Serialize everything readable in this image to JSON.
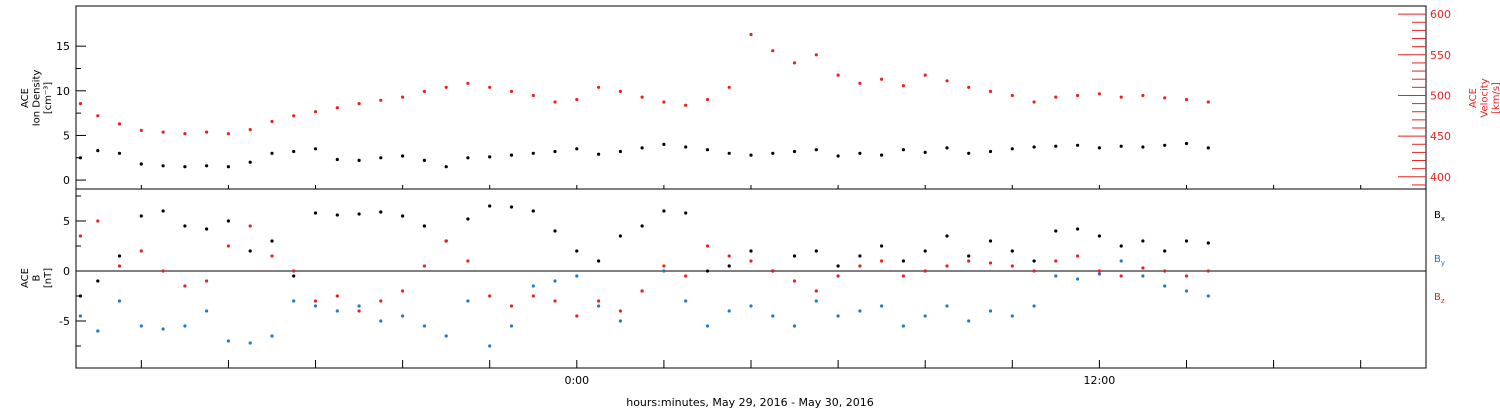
{
  "chart_data": [
    {
      "type": "scatter",
      "title": "",
      "xlabel": "",
      "ylabel_left": [
        "ACE",
        "Ion Density",
        "[cm⁻³]"
      ],
      "ylabel_right": [
        "ACE",
        "Velocity",
        "[km/s]"
      ],
      "xlim_hours": [
        -11.5,
        19.5
      ],
      "ylim_left": [
        -1,
        19.5
      ],
      "ylim_right": [
        385,
        610
      ],
      "yticks_left": [
        0,
        5,
        10,
        15
      ],
      "yticks_right": [
        400,
        450,
        500,
        550,
        600
      ],
      "colors": {
        "density": "#000000",
        "velocity": "#e8231f"
      },
      "series": [
        {
          "name": "Ion Density",
          "axis": "left",
          "color": "#000000",
          "x": [
            -11.4,
            -11.0,
            -10.5,
            -10.0,
            -9.5,
            -9.0,
            -8.5,
            -8.0,
            -7.5,
            -7.0,
            -6.5,
            -6.0,
            -5.5,
            -5.0,
            -4.5,
            -4.0,
            -3.5,
            -3.0,
            -2.5,
            -2.0,
            -1.5,
            -1.0,
            -0.5,
            0.0,
            0.5,
            1.0,
            1.5,
            2.0,
            2.5,
            3.0,
            3.5,
            4.0,
            4.5,
            5.0,
            5.5,
            6.0,
            6.5,
            7.0,
            7.5,
            8.0,
            8.5,
            9.0,
            9.5,
            10.0,
            10.5,
            11.0,
            11.5,
            12.0,
            12.5,
            13.0,
            13.5,
            14.0,
            14.5
          ],
          "y": [
            2.5,
            3.3,
            3.0,
            1.8,
            1.6,
            1.5,
            1.6,
            1.5,
            2.0,
            3.0,
            3.2,
            3.5,
            2.3,
            2.2,
            2.5,
            2.7,
            2.2,
            1.5,
            2.5,
            2.6,
            2.8,
            3.0,
            3.2,
            3.5,
            2.9,
            3.2,
            3.6,
            4.0,
            3.7,
            3.4,
            3.0,
            2.8,
            3.0,
            3.2,
            3.4,
            2.7,
            3.0,
            2.8,
            3.4,
            3.1,
            3.6,
            3.0,
            3.2,
            3.5,
            3.7,
            3.8,
            3.9,
            3.6,
            3.8,
            3.7,
            3.9,
            4.1,
            3.6
          ]
        },
        {
          "name": "Velocity",
          "axis": "right",
          "color": "#e8231f",
          "x": [
            -11.4,
            -11.0,
            -10.5,
            -10.0,
            -9.5,
            -9.0,
            -8.5,
            -8.0,
            -7.5,
            -7.0,
            -6.5,
            -6.0,
            -5.5,
            -5.0,
            -4.5,
            -4.0,
            -3.5,
            -3.0,
            -2.5,
            -2.0,
            -1.5,
            -1.0,
            -0.5,
            0.0,
            0.5,
            1.0,
            1.5,
            2.0,
            2.5,
            3.0,
            3.5,
            4.0,
            4.5,
            5.0,
            5.5,
            6.0,
            6.5,
            7.0,
            7.5,
            8.0,
            8.5,
            9.0,
            9.5,
            10.0,
            10.5,
            11.0,
            11.5,
            12.0,
            12.5,
            13.0,
            13.5,
            14.0,
            14.5
          ],
          "y": [
            490,
            475,
            465,
            457,
            455,
            453,
            455,
            453,
            458,
            468,
            475,
            480,
            485,
            490,
            494,
            498,
            505,
            510,
            515,
            510,
            505,
            500,
            492,
            495,
            510,
            505,
            498,
            492,
            488,
            495,
            510,
            575,
            555,
            540,
            550,
            525,
            515,
            520,
            512,
            525,
            518,
            510,
            505,
            500,
            492,
            498,
            500,
            502,
            498,
            500,
            497,
            495,
            492
          ]
        }
      ]
    },
    {
      "type": "scatter",
      "title": "",
      "xlabel": "hours:minutes, May 29, 2016 - May 30, 2016",
      "ylabel": [
        "ACE",
        "B",
        "[nT]"
      ],
      "xlim_hours": [
        -11.5,
        19.5
      ],
      "ylim": [
        -9.7,
        8.2
      ],
      "yticks": [
        -5,
        0,
        5
      ],
      "zero_line": true,
      "xtick_labels": [
        {
          "hour": 0,
          "label": "0:00"
        },
        {
          "hour": 12,
          "label": "12:00"
        }
      ],
      "xtick_hours": [
        -10,
        -8,
        -6,
        -4,
        -2,
        0,
        2,
        4,
        6,
        8,
        10,
        12,
        14,
        16,
        18
      ],
      "legend_placement": "right",
      "legend": [
        {
          "main": "B",
          "sub": "x",
          "color": "#000000"
        },
        {
          "main": "B",
          "sub": "y",
          "color": "#1a7cd0"
        },
        {
          "main": "B",
          "sub": "z",
          "color": "#e8231f"
        }
      ],
      "series": [
        {
          "name": "Bx",
          "color": "#000000",
          "x": [
            -11.4,
            -11.0,
            -10.5,
            -10.0,
            -9.5,
            -9.0,
            -8.5,
            -8.0,
            -7.5,
            -7.0,
            -6.5,
            -6.0,
            -5.5,
            -5.0,
            -4.5,
            -4.0,
            -3.5,
            -3.0,
            -2.5,
            -2.0,
            -1.5,
            -1.0,
            -0.5,
            0.0,
            0.5,
            1.0,
            1.5,
            2.0,
            2.5,
            3.0,
            3.5,
            4.0,
            4.5,
            5.0,
            5.5,
            6.0,
            6.5,
            7.0,
            7.5,
            8.0,
            8.5,
            9.0,
            9.5,
            10.0,
            10.5,
            11.0,
            11.5,
            12.0,
            12.5,
            13.0,
            13.5,
            14.0,
            14.5
          ],
          "y": [
            -2.5,
            -1.0,
            1.5,
            5.5,
            6.0,
            4.5,
            4.2,
            5.0,
            2.0,
            3.0,
            -0.5,
            5.8,
            5.6,
            5.7,
            5.9,
            5.5,
            4.5,
            3.0,
            5.2,
            6.5,
            6.4,
            6.0,
            4.0,
            2.0,
            1.0,
            3.5,
            4.5,
            6.0,
            5.8,
            0.0,
            0.5,
            2.0,
            0.0,
            1.5,
            2.0,
            0.5,
            1.5,
            2.5,
            1.0,
            2.0,
            3.5,
            1.5,
            3.0,
            2.0,
            1.0,
            4.0,
            4.2,
            3.5,
            2.5,
            3.0,
            2.0,
            3.0,
            2.8
          ]
        },
        {
          "name": "By",
          "color": "#1a7cd0",
          "x": [
            -11.4,
            -11.0,
            -10.5,
            -10.0,
            -9.5,
            -9.0,
            -8.5,
            -8.0,
            -7.5,
            -7.0,
            -6.5,
            -6.0,
            -5.5,
            -5.0,
            -4.5,
            -4.0,
            -3.5,
            -3.0,
            -2.5,
            -2.0,
            -1.5,
            -1.0,
            -0.5,
            0.0,
            0.5,
            1.0,
            1.5,
            2.0,
            2.5,
            3.0,
            3.5,
            4.0,
            4.5,
            5.0,
            5.5,
            6.0,
            6.5,
            7.0,
            7.5,
            8.0,
            8.5,
            9.0,
            9.5,
            10.0,
            10.5,
            11.0,
            11.5,
            12.0,
            12.5,
            13.0,
            13.5,
            14.0,
            14.5
          ],
          "y": [
            -4.5,
            -6.0,
            -3.0,
            -5.5,
            -5.8,
            -5.5,
            -4.0,
            -7.0,
            -7.2,
            -6.5,
            -3.0,
            -3.5,
            -4.0,
            -3.5,
            -5.0,
            -4.5,
            -5.5,
            -6.5,
            -3.0,
            -7.5,
            -5.5,
            -1.5,
            -1.0,
            -0.5,
            -3.5,
            -5.0,
            -2.0,
            0.0,
            -3.0,
            -5.5,
            -4.0,
            -3.5,
            -4.5,
            -5.5,
            -3.0,
            -4.5,
            -4.0,
            -3.5,
            -5.5,
            -4.5,
            -3.5,
            -5.0,
            -4.0,
            -4.5,
            -3.5,
            -0.5,
            -0.8,
            -0.3,
            1.0,
            -0.5,
            -1.5,
            -2.0,
            -2.5
          ]
        },
        {
          "name": "Bz",
          "color": "#e8231f",
          "x": [
            -11.4,
            -11.0,
            -10.5,
            -10.0,
            -9.5,
            -9.0,
            -8.5,
            -8.0,
            -7.5,
            -7.0,
            -6.5,
            -6.0,
            -5.5,
            -5.0,
            -4.5,
            -4.0,
            -3.5,
            -3.0,
            -2.5,
            -2.0,
            -1.5,
            -1.0,
            -0.5,
            0.0,
            0.5,
            1.0,
            1.5,
            2.0,
            2.5,
            3.0,
            3.5,
            4.0,
            4.5,
            5.0,
            5.5,
            6.0,
            6.5,
            7.0,
            7.5,
            8.0,
            8.5,
            9.0,
            9.5,
            10.0,
            10.5,
            11.0,
            11.5,
            12.0,
            12.5,
            13.0,
            13.5,
            14.0,
            14.5
          ],
          "y": [
            3.5,
            5.0,
            0.5,
            2.0,
            0.0,
            -1.5,
            -1.0,
            2.5,
            4.5,
            1.5,
            0.0,
            -3.0,
            -2.5,
            -4.0,
            -3.0,
            -2.0,
            0.5,
            3.0,
            1.0,
            -2.5,
            -3.5,
            -2.5,
            -3.0,
            -4.5,
            -3.0,
            -4.0,
            -2.0,
            0.5,
            -0.5,
            2.5,
            1.5,
            1.0,
            0.0,
            -1.0,
            -2.0,
            -0.5,
            0.5,
            1.0,
            -0.5,
            0.0,
            0.5,
            1.0,
            0.8,
            0.5,
            0.0,
            1.0,
            1.5,
            0.0,
            -0.5,
            0.3,
            0.0,
            -0.5,
            0.0
          ]
        }
      ]
    }
  ]
}
